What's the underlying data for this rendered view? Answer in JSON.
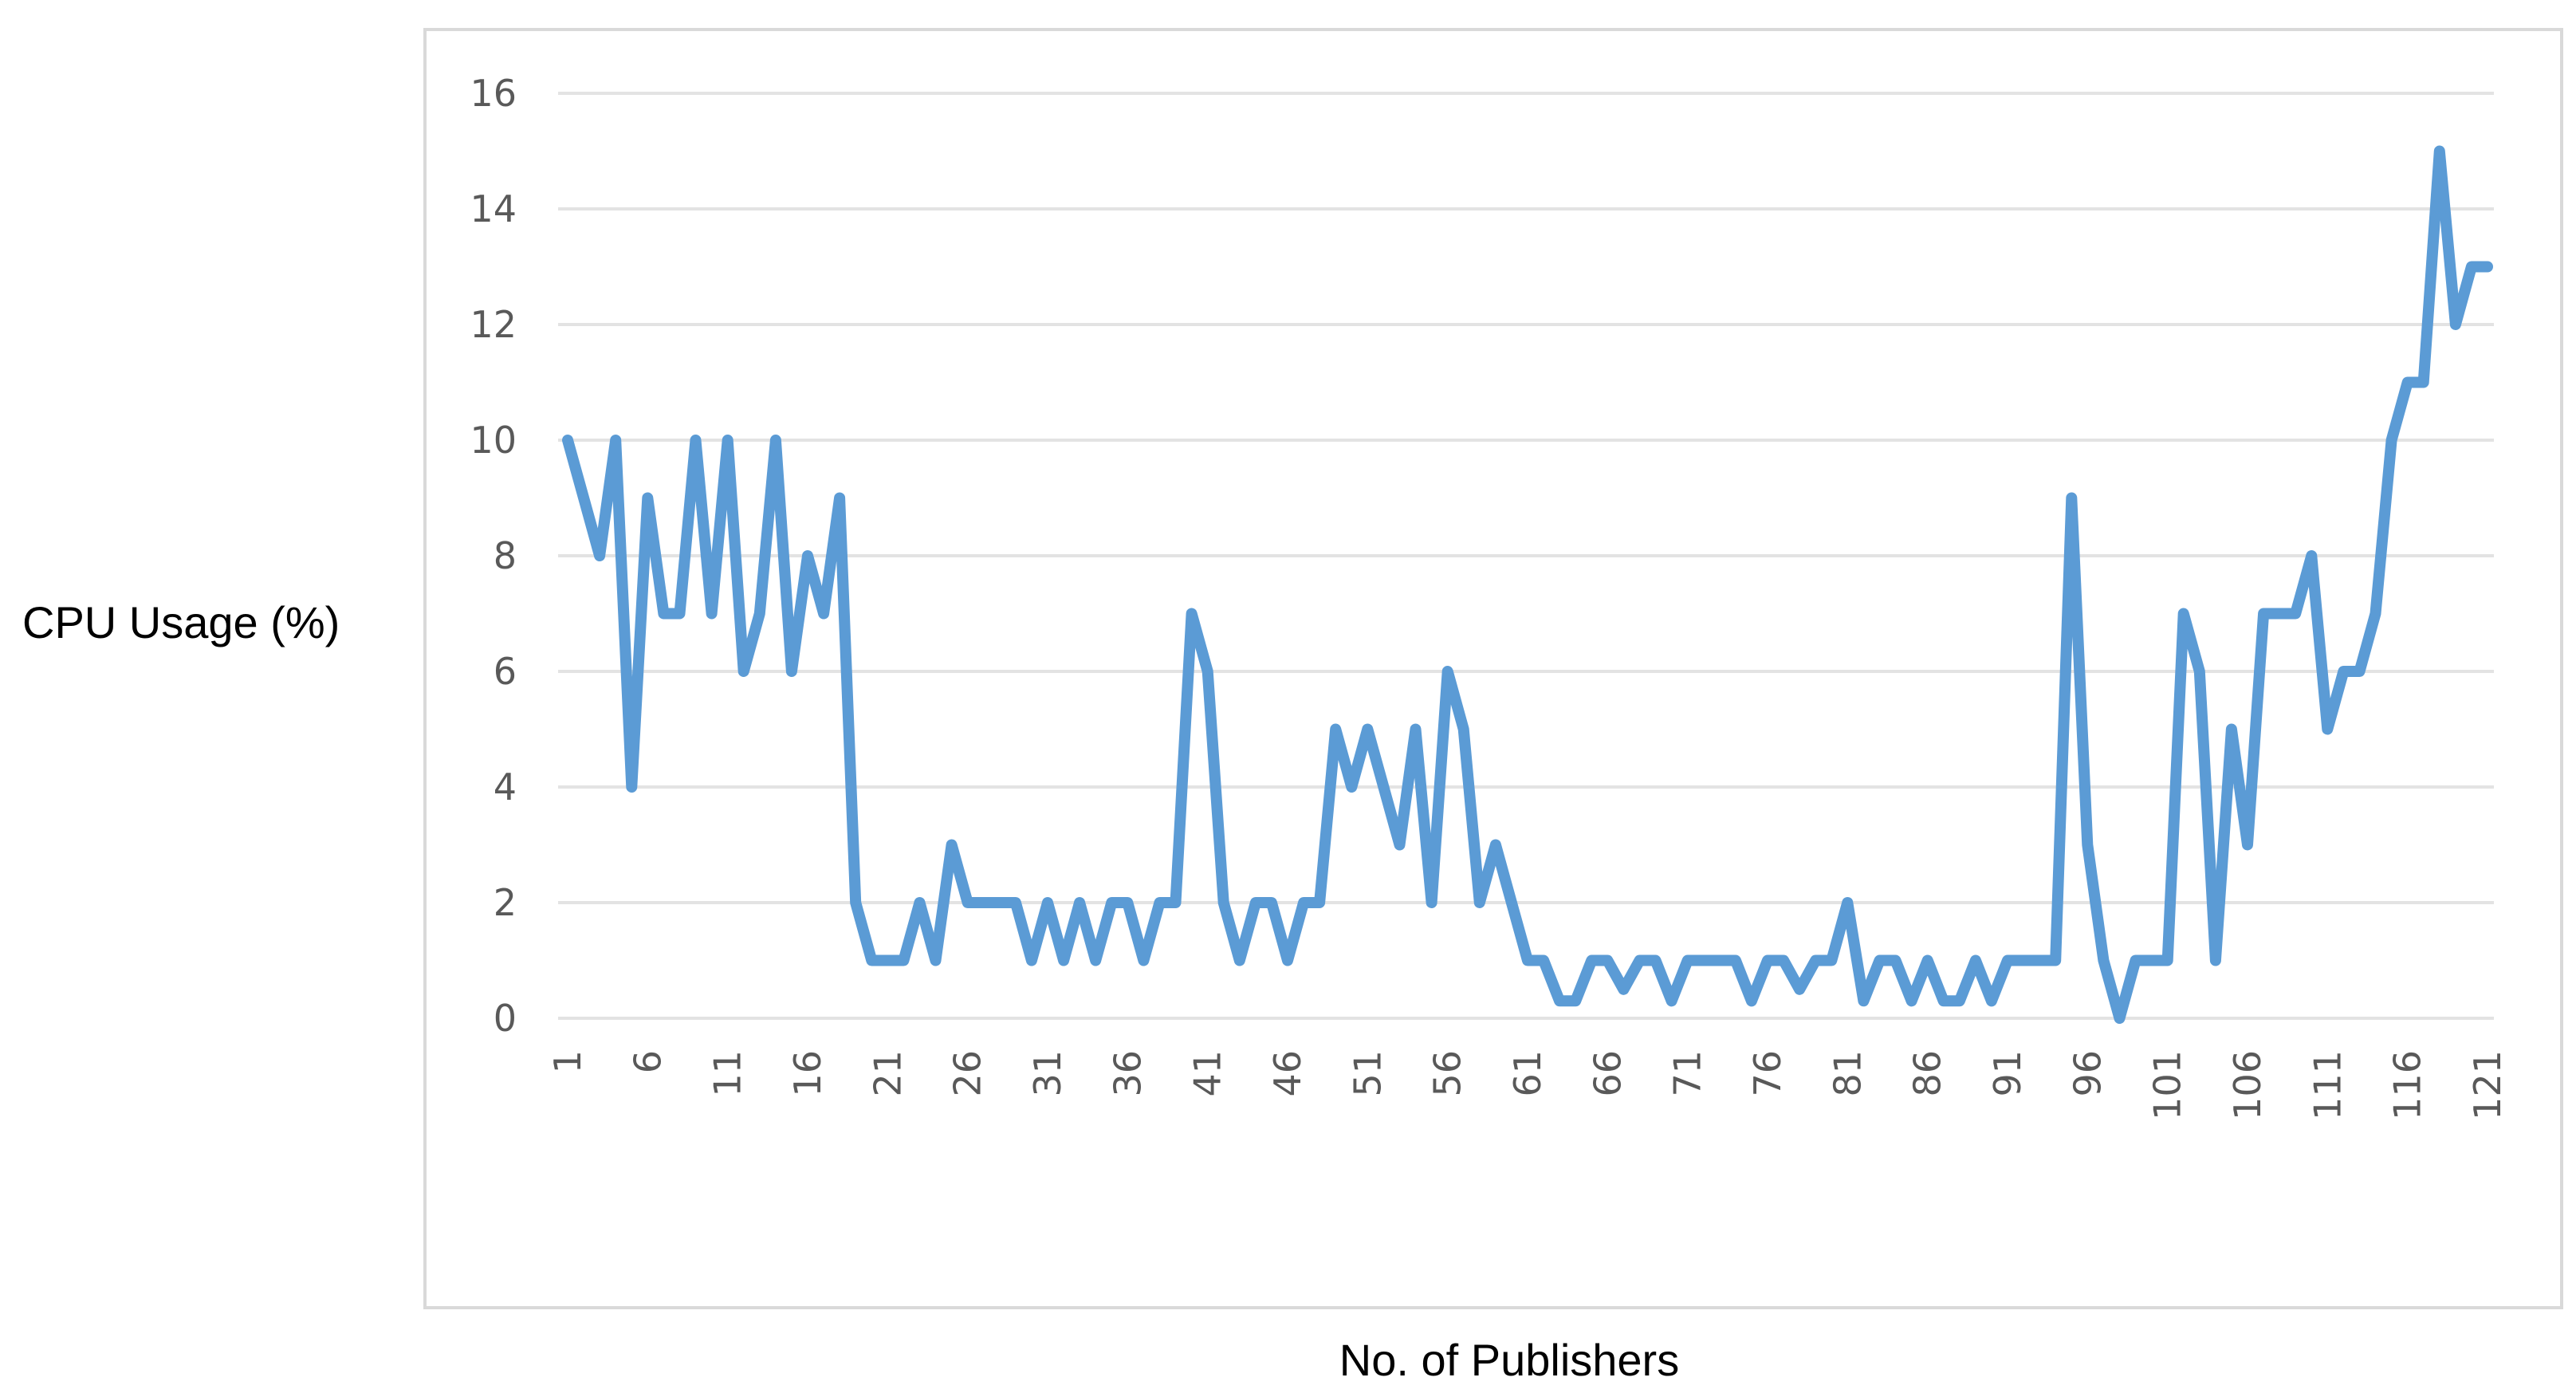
{
  "chart_data": {
    "type": "line",
    "title": "",
    "xlabel": "No. of Publishers",
    "ylabel": "CPU Usage (%)",
    "ylim": [
      0,
      16
    ],
    "y_ticks": [
      "0",
      "2",
      "4",
      "6",
      "8",
      "10",
      "12",
      "14",
      "16"
    ],
    "x_tick_labels": [
      "1",
      "6",
      "11",
      "16",
      "21",
      "26",
      "31",
      "36",
      "41",
      "46",
      "51",
      "56",
      "61",
      "66",
      "71",
      "76",
      "81",
      "86",
      "91",
      "96",
      "101",
      "106",
      "111",
      "116",
      "121"
    ],
    "grid": "horizontal",
    "legend": "none",
    "series": [
      {
        "color": "#5B9BD5",
        "x": [
          1,
          2,
          3,
          4,
          5,
          6,
          7,
          8,
          9,
          10,
          11,
          12,
          13,
          14,
          15,
          16,
          17,
          18,
          19,
          20,
          21,
          22,
          23,
          24,
          25,
          26,
          27,
          28,
          29,
          30,
          31,
          32,
          33,
          34,
          35,
          36,
          37,
          38,
          39,
          40,
          41,
          42,
          43,
          44,
          45,
          46,
          47,
          48,
          49,
          50,
          51,
          52,
          53,
          54,
          55,
          56,
          57,
          58,
          59,
          60,
          61,
          62,
          63,
          64,
          65,
          66,
          67,
          68,
          69,
          70,
          71,
          72,
          73,
          74,
          75,
          76,
          77,
          78,
          79,
          80,
          81,
          82,
          83,
          84,
          85,
          86,
          87,
          88,
          89,
          90,
          91,
          92,
          93,
          94,
          95,
          96,
          97,
          98,
          99,
          100,
          101,
          102,
          103,
          104,
          105,
          106,
          107,
          108,
          109,
          110,
          111,
          112,
          113,
          114,
          115,
          116,
          117,
          118,
          119,
          120,
          121
        ],
        "values": [
          10,
          9,
          8,
          10,
          4,
          9,
          7,
          7,
          10,
          7,
          10,
          6,
          7,
          10,
          6,
          8,
          7,
          9,
          2,
          1,
          1,
          1,
          2,
          1,
          3,
          2,
          2,
          2,
          2,
          1,
          2,
          1,
          2,
          1,
          2,
          2,
          1,
          2,
          2,
          7,
          6,
          2,
          1,
          2,
          2,
          1,
          2,
          2,
          5,
          4,
          5,
          4,
          3,
          5,
          2,
          6,
          5,
          2,
          3,
          2,
          1,
          1,
          0.3,
          0.3,
          1,
          1,
          0.5,
          1,
          1,
          0.3,
          1,
          1,
          1,
          1,
          0.3,
          1,
          1,
          0.5,
          1,
          1,
          2,
          0.3,
          1,
          1,
          0.3,
          1,
          0.3,
          0.3,
          1,
          0.3,
          1,
          1,
          1,
          1,
          9,
          3,
          1,
          0,
          1,
          1,
          1,
          7,
          6,
          1,
          5,
          3,
          7,
          7,
          7,
          8,
          5,
          6,
          6,
          7,
          10,
          11,
          11,
          15,
          12,
          13,
          13
        ]
      }
    ]
  }
}
